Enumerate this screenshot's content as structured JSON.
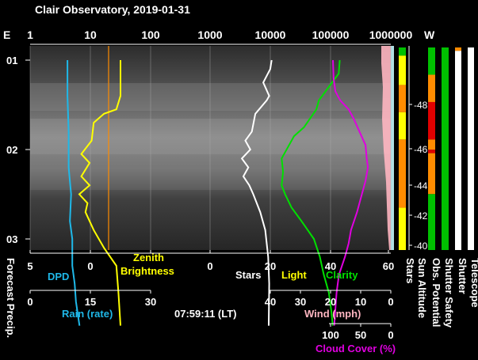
{
  "title": "Clair Observatory, 2019-01-31",
  "timestamp": "07:59:11 (LT)",
  "colors": {
    "dpd": "#1fb8e8",
    "zenith": "#ffff00",
    "stars": "#ffffff",
    "light": "#ffff00",
    "clarity": "#00e000",
    "wind": "#ffb6c1",
    "cloud": "#e000e0",
    "rain": "#1fb8e8",
    "orange": "#ff8c00",
    "red": "#e00000",
    "green": "#00c000",
    "yellow": "#ffff00"
  },
  "chart_data": {
    "type": "line",
    "top_axis": {
      "left_label": "E",
      "right_label": "W",
      "ticks": [
        "1",
        "10",
        "100",
        "1000",
        "10000",
        "100000",
        "1000000"
      ],
      "scale": "log"
    },
    "time_ticks": [
      "01",
      "02",
      "03"
    ],
    "bottom_axes": {
      "main_ticks": [
        "5",
        "0",
        "0",
        "20",
        "40",
        "60"
      ],
      "labels": {
        "dpd": "DPD",
        "zenith_line1": "Zenith",
        "zenith_line2": "Brightness",
        "stars": "Stars",
        "light": "Light",
        "clarity": "Clarity"
      },
      "rain": {
        "ticks": [
          "0",
          "15",
          "30"
        ],
        "label": "Rain (rate)"
      },
      "wind": {
        "ticks": [
          "40",
          "30",
          "20",
          "10",
          "0"
        ],
        "label": "Wind (mph)"
      },
      "cloud": {
        "ticks": [
          "100",
          "50",
          "0"
        ],
        "label": "Cloud Cover (%)"
      }
    },
    "vertical_labels": [
      "Forecast Precip.",
      "Stars",
      "Sun Altitude",
      "Obs. Potential",
      "Shutter Safety",
      "Shutter",
      "Telescope"
    ],
    "sun_altitude_ticks": [
      "-48",
      "-46",
      "-44",
      "-42",
      "-40"
    ],
    "series": [
      {
        "name": "DPD",
        "x": [
          1.9,
          1.9,
          1.8,
          1.8,
          1.6,
          1.7,
          1.5,
          1.5,
          1.3,
          1.2,
          0.9
        ],
        "y": [
          0.0,
          0.4,
          0.8,
          1.2,
          1.5,
          1.8,
          2.0,
          2.3,
          2.5,
          2.7,
          2.97
        ]
      },
      {
        "name": "Zenith Brightness",
        "x": [
          21.8,
          21.8,
          21.6,
          21.0,
          20.5,
          20.4,
          19.9,
          20.3,
          19.9,
          20.3,
          19.8,
          20.2,
          20.1,
          20.5,
          21.0,
          21.6,
          21.7,
          21.8
        ],
        "y": [
          0.0,
          0.4,
          0.55,
          0.6,
          0.7,
          0.9,
          1.05,
          1.15,
          1.3,
          1.4,
          1.5,
          1.6,
          1.7,
          1.9,
          2.1,
          2.3,
          2.6,
          2.97
        ]
      },
      {
        "name": "Stars",
        "x": [
          36.5,
          36.2,
          34.8,
          36.0,
          35.5,
          33.2,
          32.5,
          31.2,
          32.2,
          30.5,
          31.8,
          30.8,
          32.0,
          32.8,
          34.2,
          35.2,
          35.8,
          36.0,
          35.9
        ],
        "y": [
          0.0,
          0.1,
          0.25,
          0.4,
          0.45,
          0.6,
          0.8,
          0.9,
          1.0,
          1.1,
          1.2,
          1.3,
          1.4,
          1.5,
          1.7,
          1.9,
          2.2,
          2.5,
          2.97
        ]
      },
      {
        "name": "Clarity",
        "x": [
          50.2,
          50.0,
          48.0,
          46.0,
          45.5,
          43.0,
          41.0,
          40.0,
          38.5,
          38.8,
          38.5,
          39.2,
          40.5,
          42.5,
          45.0,
          46.2,
          47.0,
          48.0,
          48.5,
          48.8
        ],
        "y": [
          0.0,
          0.15,
          0.3,
          0.45,
          0.55,
          0.75,
          0.85,
          0.95,
          1.1,
          1.25,
          1.4,
          1.5,
          1.65,
          1.8,
          2.0,
          2.2,
          2.4,
          2.6,
          2.8,
          2.97
        ]
      },
      {
        "name": "Cloud Cover",
        "x": [
          96,
          95,
          92,
          88,
          84,
          70,
          62,
          52,
          42,
          40,
          38,
          42,
          48,
          56,
          66,
          70,
          76,
          86,
          90,
          94
        ],
        "y": [
          0.0,
          0.2,
          0.35,
          0.4,
          0.45,
          0.55,
          0.65,
          0.8,
          0.95,
          1.1,
          1.2,
          1.35,
          1.5,
          1.7,
          1.9,
          2.05,
          2.2,
          2.4,
          2.6,
          2.97
        ]
      }
    ],
    "zenith_limit_orange": 20.7,
    "status_columns": [
      {
        "name": "Stars",
        "segments": [
          [
            "#00c000",
            0.0,
            0.12
          ],
          [
            "#ffff00",
            0.12,
            0.55
          ],
          [
            "#ff8c00",
            0.55,
            0.95
          ],
          [
            "#ffff00",
            0.95,
            1.35
          ],
          [
            "#ff8c00",
            1.35,
            2.35
          ],
          [
            "#ffff00",
            2.35,
            2.97
          ]
        ]
      },
      {
        "name": "Obs. Potential",
        "segments": [
          [
            "#00c000",
            0.0,
            0.4
          ],
          [
            "#ff8c00",
            0.4,
            0.8
          ],
          [
            "#e00000",
            0.8,
            1.35
          ],
          [
            "#ff8c00",
            1.35,
            1.5
          ],
          [
            "#e00000",
            1.5,
            1.55
          ],
          [
            "#ff8c00",
            1.55,
            2.15
          ],
          [
            "#00c000",
            2.15,
            2.97
          ]
        ]
      },
      {
        "name": "Shutter Safety",
        "segments": [
          [
            "#00c000",
            0.0,
            2.97
          ]
        ]
      },
      {
        "name": "Shutter",
        "segments": [
          [
            "#ff8c00",
            0.0,
            0.05
          ],
          [
            "#ffffff",
            0.05,
            2.97
          ]
        ]
      },
      {
        "name": "Telescope",
        "segments": [
          [
            "#ffffff",
            0.0,
            2.97
          ]
        ]
      }
    ]
  }
}
